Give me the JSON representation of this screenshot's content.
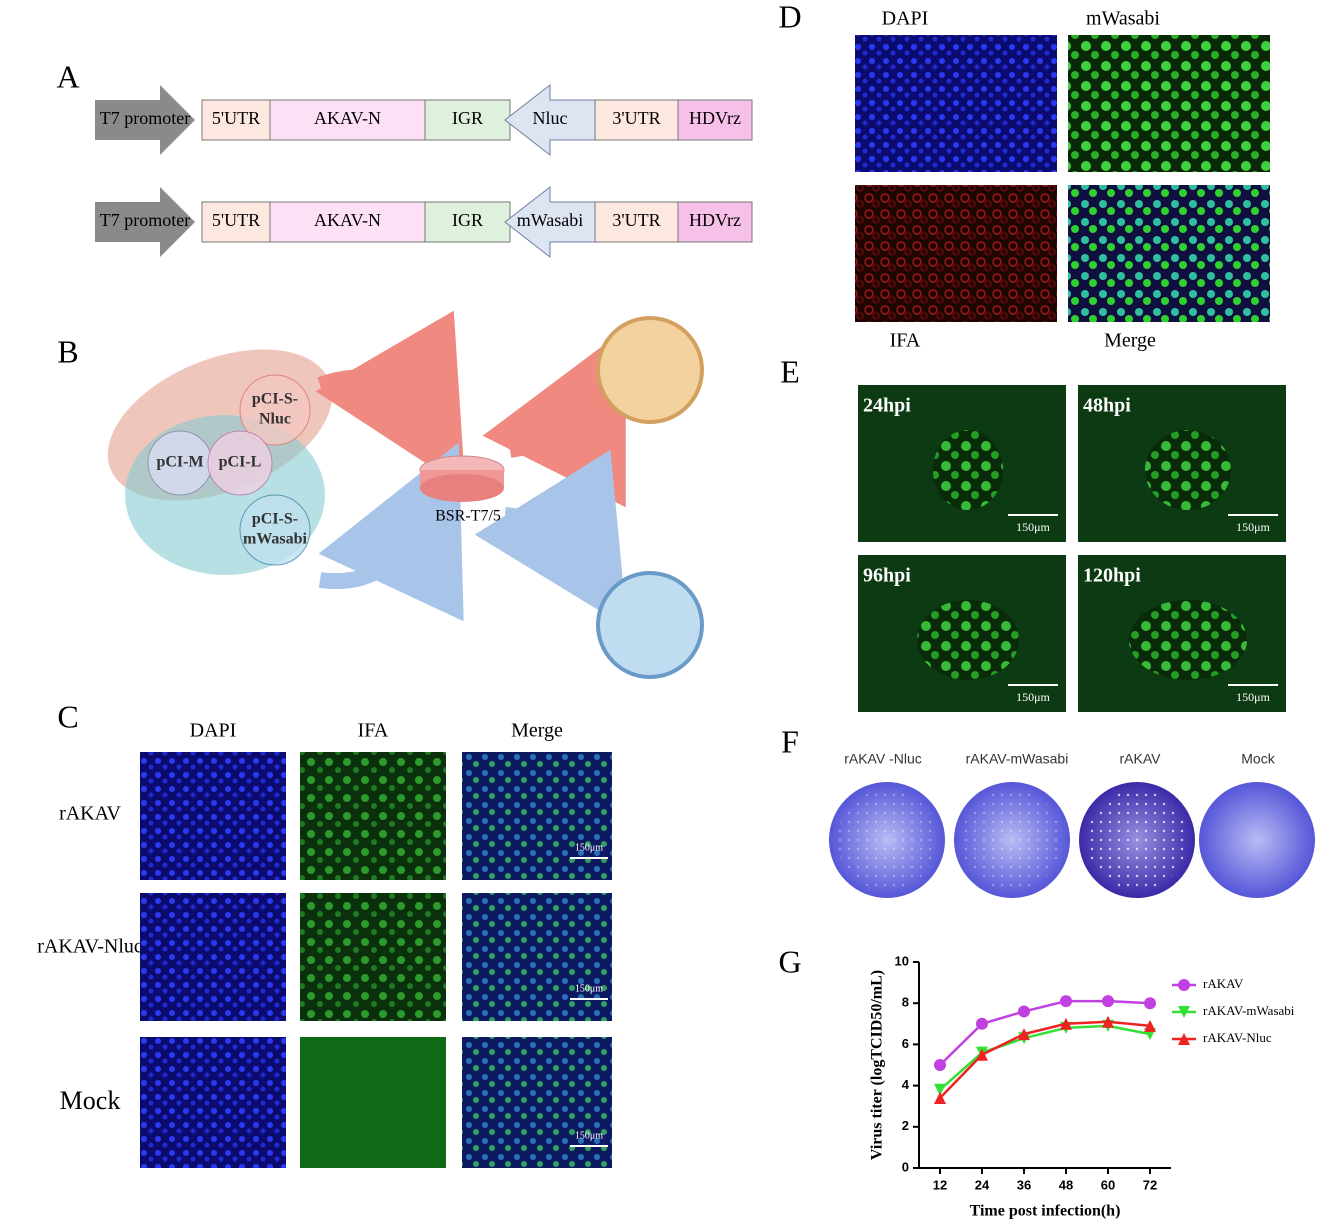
{
  "panel_labels": [
    "A",
    "B",
    "C",
    "D",
    "E",
    "F",
    "G"
  ],
  "constructs": [
    {
      "promoter": "T7 promoter",
      "parts": [
        "5'UTR",
        "AKAV-N",
        "IGR"
      ],
      "reporter": "Nluc",
      "tail": [
        "3'UTR",
        "HDVrz"
      ]
    },
    {
      "promoter": "T7 promoter",
      "parts": [
        "5'UTR",
        "AKAV-N",
        "IGR"
      ],
      "reporter": "mWasabi",
      "tail": [
        "3'UTR",
        "HDVrz"
      ]
    }
  ],
  "rescue": {
    "plasmids": [
      [
        "pCI-S-",
        "Nluc"
      ],
      [
        "pCI-M"
      ],
      [
        "pCI-L"
      ],
      [
        "pCI-S-",
        "mWasabi"
      ]
    ],
    "cells": "BSR-T7/5"
  },
  "panel_c": {
    "columns": [
      "DAPI",
      "IFA",
      "Merge"
    ],
    "rows": [
      "rAKAV",
      "rAKAV-Nluc",
      "Mock"
    ],
    "scale_bar": "150μm"
  },
  "panel_d": {
    "labels": [
      "DAPI",
      "mWasabi",
      "IFA",
      "Merge"
    ]
  },
  "panel_e": {
    "timepoints": [
      "24hpi",
      "48hpi",
      "96hpi",
      "120hpi"
    ],
    "scale_bar": "150μm"
  },
  "panel_f": {
    "samples": [
      "rAKAV -Nluc",
      "rAKAV-mWasabi",
      "rAKAV",
      "Mock"
    ]
  },
  "chart_data": {
    "type": "line",
    "x_label": "Time post infection(h)",
    "y_label": "Virus titer (logTCID50/mL)",
    "x": [
      12,
      24,
      36,
      48,
      60,
      72
    ],
    "xlim": [
      6,
      78
    ],
    "xticks": [
      12,
      24,
      36,
      48,
      60,
      72
    ],
    "ylim": [
      0,
      10
    ],
    "yticks": [
      0,
      2,
      4,
      6,
      8,
      10
    ],
    "series": [
      {
        "name": "rAKAV",
        "color": "#c040e0",
        "marker": "circle",
        "values": [
          5.0,
          7.0,
          7.6,
          8.1,
          8.1,
          8.0
        ]
      },
      {
        "name": "rAKAV-mWasabi",
        "color": "#33e033",
        "marker": "triangle-down",
        "values": [
          3.8,
          5.6,
          6.3,
          6.8,
          6.9,
          6.5
        ]
      },
      {
        "name": "rAKAV-Nluc",
        "color": "#ee2222",
        "marker": "triangle-up",
        "values": [
          3.4,
          5.5,
          6.5,
          7.0,
          7.1,
          6.9
        ]
      }
    ]
  }
}
